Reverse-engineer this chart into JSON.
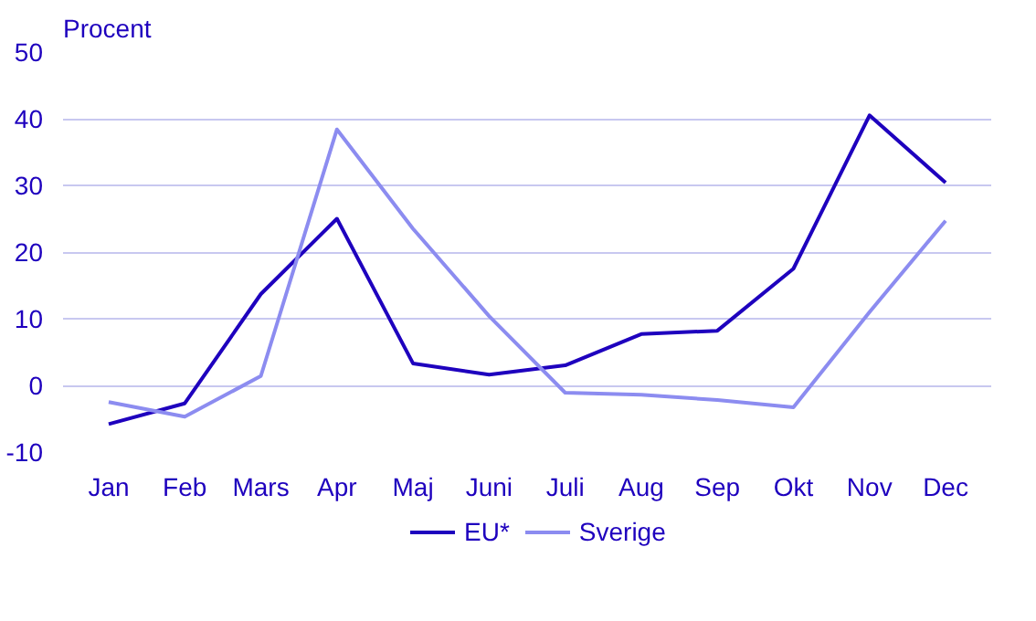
{
  "chart_data": {
    "type": "line",
    "ylabel": "Procent",
    "categories": [
      "Jan",
      "Feb",
      "Mars",
      "Apr",
      "Maj",
      "Juni",
      "Juli",
      "Aug",
      "Sep",
      "Okt",
      "Nov",
      "Dec"
    ],
    "series": [
      {
        "name": "EU*",
        "color": "#1e00be",
        "values": [
          -5.8,
          -2.7,
          13.7,
          25,
          3.3,
          1.6,
          3,
          7.7,
          8.2,
          17.5,
          40.5,
          30.4
        ]
      },
      {
        "name": "Sverige",
        "color": "#8c8cf0",
        "values": [
          -2.5,
          -4.7,
          1.4,
          38.4,
          23.5,
          10.4,
          -1.1,
          -1.4,
          -2.2,
          -3.3,
          11,
          24.7
        ]
      }
    ],
    "ylim": [
      -10,
      50
    ],
    "yticks": [
      -10,
      0,
      10,
      20,
      30,
      40,
      50
    ],
    "grid": "y",
    "legend": "bottom",
    "marker": "none",
    "line_style": "solid"
  }
}
